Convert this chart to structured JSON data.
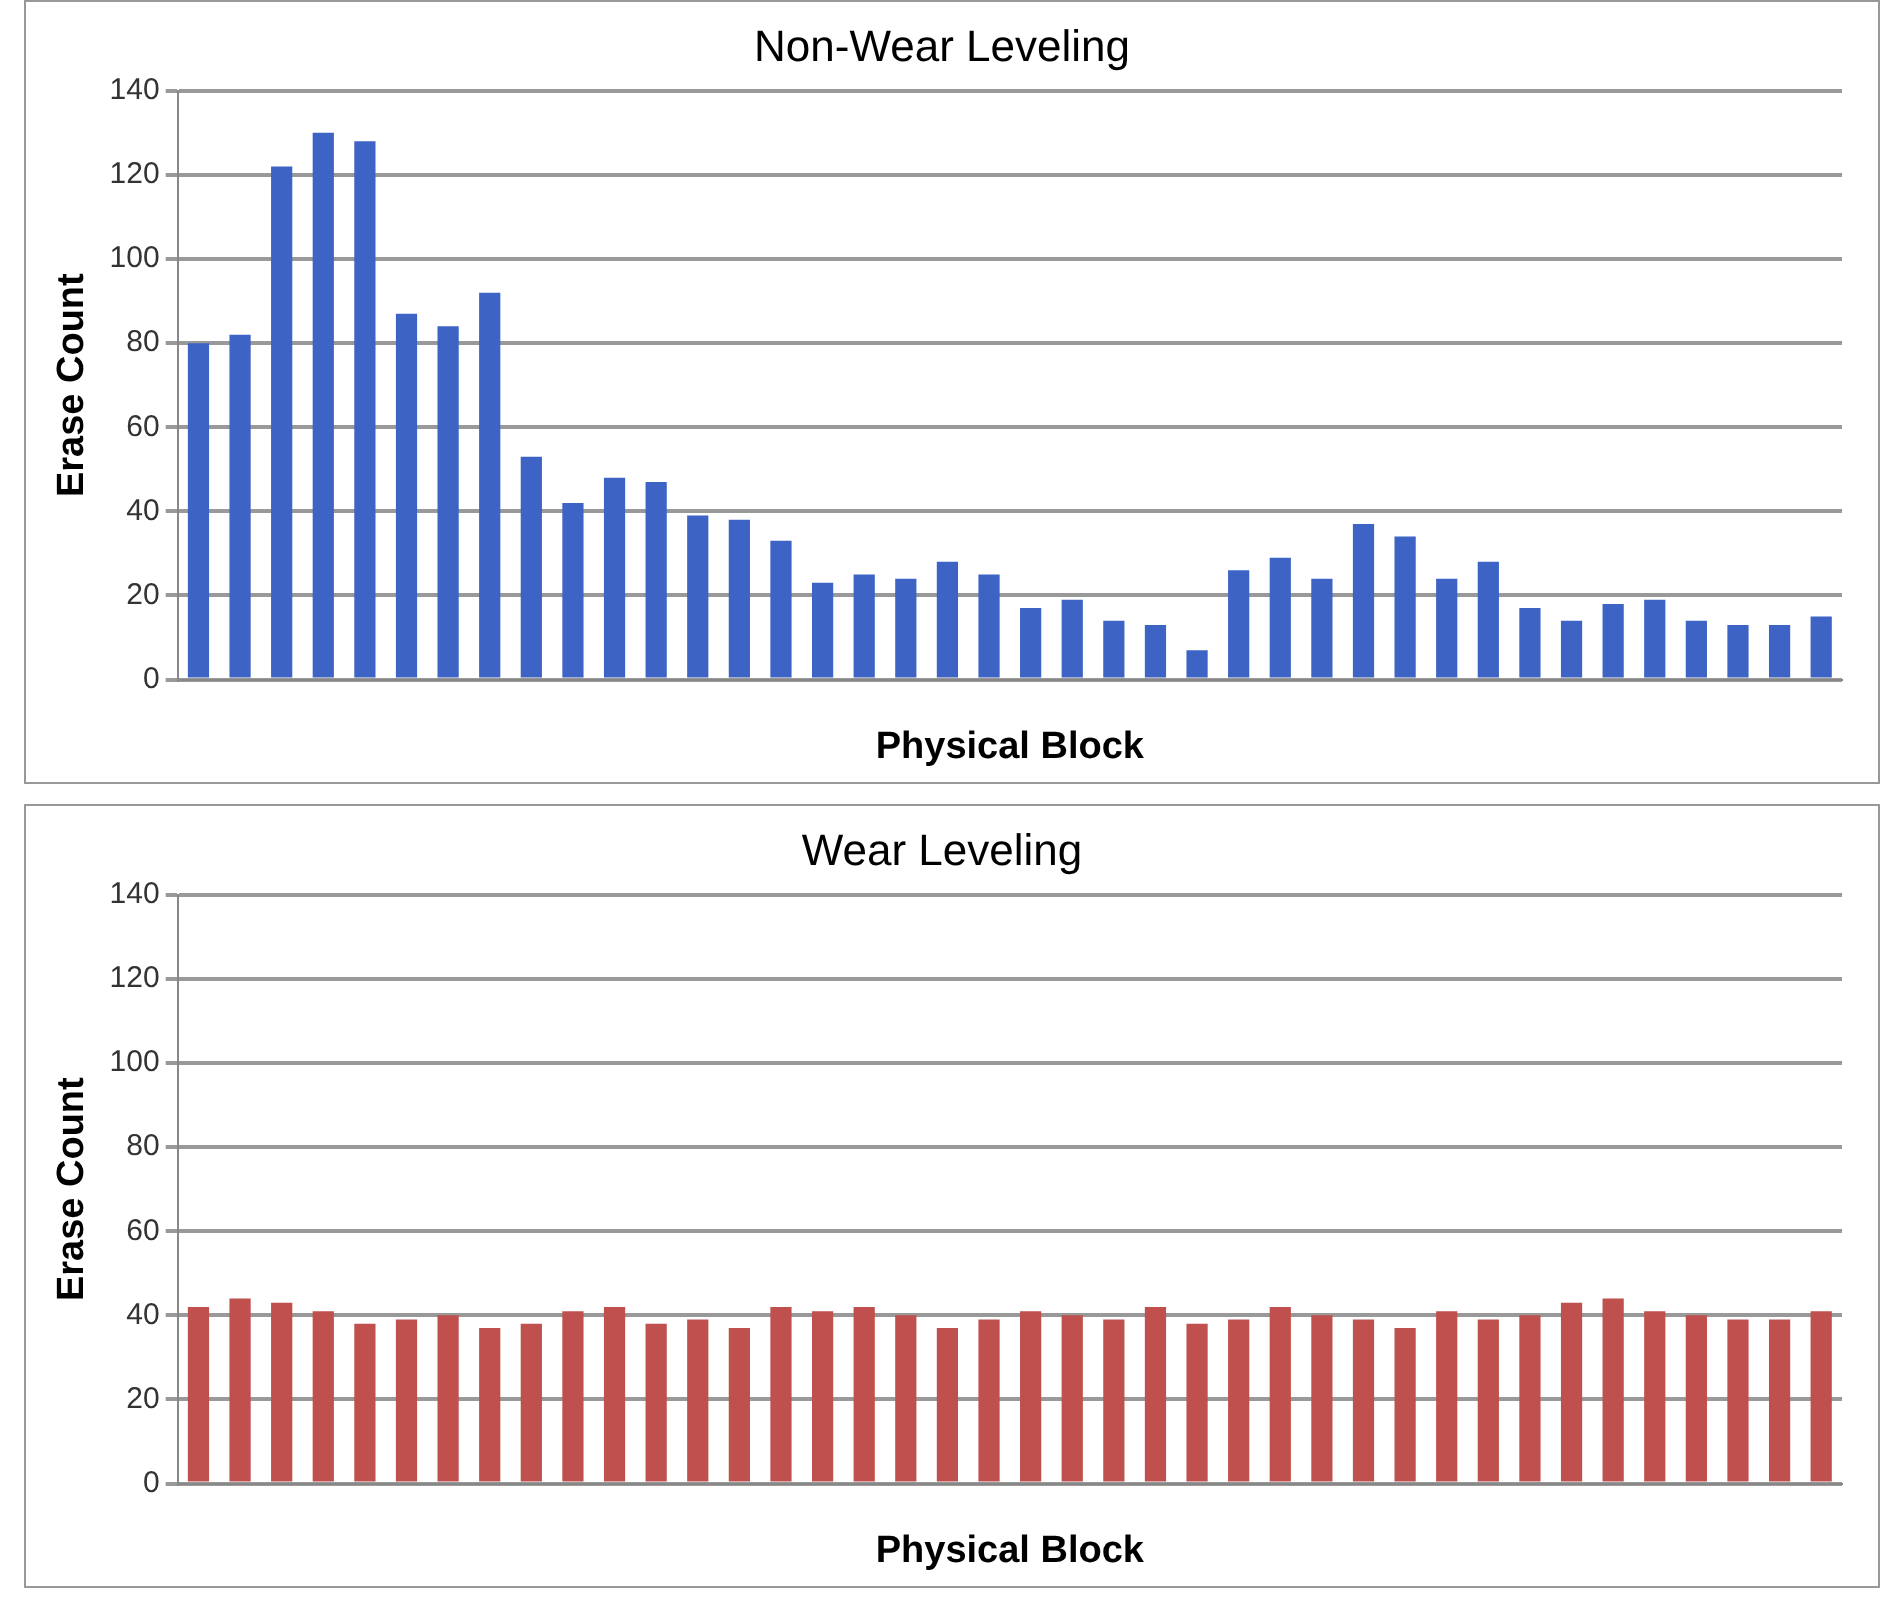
{
  "chart_data": [
    {
      "type": "bar",
      "title": "Non-Wear Leveling",
      "xlabel": "Physical Block",
      "ylabel": "Erase Count",
      "categories": [
        null,
        null,
        null,
        null,
        null,
        null,
        null,
        null,
        null,
        null,
        null,
        null,
        null,
        null,
        null,
        null,
        null,
        null,
        null,
        null,
        null,
        null,
        null,
        null,
        null,
        null,
        null,
        null,
        null,
        null,
        null,
        null,
        null,
        null,
        null,
        null,
        null,
        null,
        null,
        null
      ],
      "series": [
        {
          "color": "#3d64c4",
          "values": [
            80,
            82,
            122,
            130,
            128,
            87,
            84,
            92,
            53,
            42,
            48,
            47,
            39,
            38,
            33,
            23,
            25,
            24,
            28,
            25,
            17,
            19,
            14,
            13,
            7,
            26,
            29,
            24,
            37,
            34,
            24,
            28,
            17,
            14,
            18,
            19,
            14,
            13,
            13,
            15
          ]
        }
      ],
      "ylim": [
        0,
        140
      ],
      "yticks": [
        0,
        20,
        40,
        60,
        80,
        100,
        120,
        140
      ],
      "grid": "y",
      "legend": false
    },
    {
      "type": "bar",
      "title": "Wear Leveling",
      "xlabel": "Physical Block",
      "ylabel": "Erase Count",
      "categories": [
        null,
        null,
        null,
        null,
        null,
        null,
        null,
        null,
        null,
        null,
        null,
        null,
        null,
        null,
        null,
        null,
        null,
        null,
        null,
        null,
        null,
        null,
        null,
        null,
        null,
        null,
        null,
        null,
        null,
        null,
        null,
        null,
        null,
        null,
        null,
        null,
        null,
        null,
        null,
        null
      ],
      "series": [
        {
          "color": "#c0504d",
          "values": [
            42,
            44,
            43,
            41,
            38,
            39,
            40,
            37,
            38,
            41,
            42,
            38,
            39,
            37,
            42,
            41,
            42,
            40,
            37,
            39,
            41,
            40,
            39,
            42,
            38,
            39,
            42,
            40,
            39,
            37,
            41,
            39,
            40,
            43,
            44,
            41,
            40,
            39,
            39,
            41
          ]
        }
      ],
      "ylim": [
        0,
        140
      ],
      "yticks": [
        0,
        20,
        40,
        60,
        80,
        100,
        120,
        140
      ],
      "grid": "y",
      "legend": false
    }
  ]
}
